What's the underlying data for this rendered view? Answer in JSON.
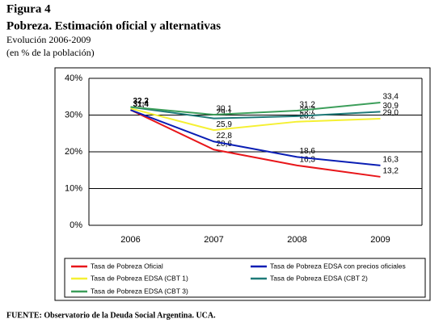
{
  "chart_data": {
    "type": "line",
    "figure_label": "Figura 4",
    "title": "Pobreza. Estimación oficial y alternativas",
    "subtitle": "Evolución 2006-2009",
    "unit_note": "(en % de la población)",
    "source": "FUENTE: Observatorio de la Deuda Social Argentina. UCA.",
    "categories": [
      "2006",
      "2007",
      "2008",
      "2009"
    ],
    "ylim": [
      0,
      40
    ],
    "yticks": [
      {
        "value": 0,
        "label": "0%"
      },
      {
        "value": 10,
        "label": "10%"
      },
      {
        "value": 20,
        "label": "20%"
      },
      {
        "value": 30,
        "label": "30%"
      },
      {
        "value": 40,
        "label": "40%"
      }
    ],
    "grid": true,
    "legend": "bottom",
    "series": [
      {
        "name": "Tasa de Pobreza Oficial",
        "color": "#e8161a",
        "values": [
          31.4,
          20.6,
          16.3,
          13.2
        ],
        "value_labels": [
          "31,4",
          "20,6",
          "16,3",
          "13,2"
        ]
      },
      {
        "name": "Tasa de Pobreza EDSA con precios oficiales",
        "color": "#0a1eb4",
        "values": [
          31.4,
          22.8,
          18.6,
          16.3
        ],
        "value_labels": [
          null,
          "22,8",
          "18,6",
          "16,3"
        ]
      },
      {
        "name": "Tasa de Pobreza  EDSA (CBT 1)",
        "color": "#f5f032",
        "values": [
          31.8,
          25.9,
          28.2,
          29.0
        ],
        "value_labels": [
          null,
          "25,9",
          "28,2",
          "29,0"
        ]
      },
      {
        "name": "Tasa de Pobreza  EDSA (CBT 2)",
        "color": "#1e7a78",
        "values": [
          32.2,
          29.1,
          29.7,
          30.9
        ],
        "value_labels": [
          "32,2",
          "29,1",
          "29,7",
          "30,9"
        ]
      },
      {
        "name": "Tasa de Pobreza  EDSA (CBT 3)",
        "color": "#3c9e5a",
        "values": [
          32.2,
          30.1,
          31.2,
          33.4
        ],
        "value_labels": [
          null,
          "30,1",
          "31,2",
          "33,4"
        ]
      }
    ]
  }
}
